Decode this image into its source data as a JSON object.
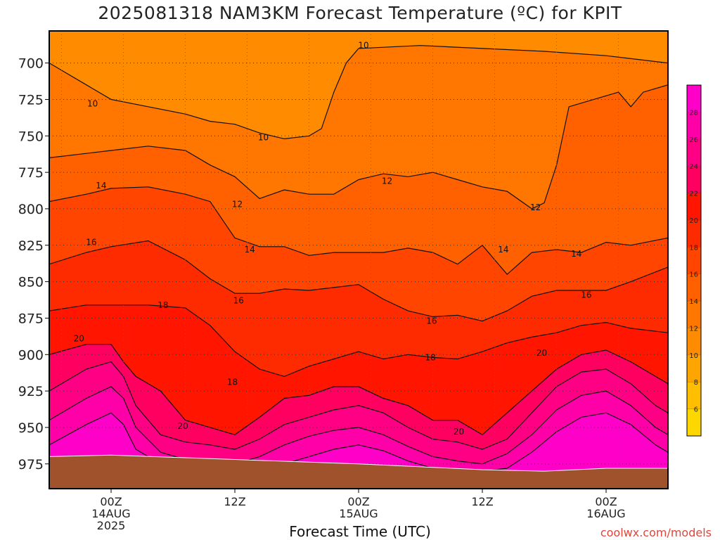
{
  "chart_data": {
    "type": "heatmap",
    "title": "2025081318 NAM3KM Forecast Temperature (ºC) for KPIT",
    "xlabel": "Forecast Time (UTC)",
    "ylabel": "",
    "credit": "coolwx.com/models",
    "y_axis": {
      "ticks": [
        700,
        725,
        750,
        775,
        800,
        825,
        850,
        875,
        900,
        925,
        950,
        975
      ],
      "reversed": true,
      "range": [
        678,
        992
      ]
    },
    "x_axis": {
      "range_hours": [
        -5,
        45
      ],
      "ticks": [
        {
          "hour": 0,
          "lines": [
            "00Z",
            "14AUG",
            "2025"
          ]
        },
        {
          "hour": 10,
          "lines": [
            "12Z"
          ]
        },
        {
          "hour": 20,
          "lines": [
            "00Z",
            "15AUG"
          ]
        },
        {
          "hour": 30,
          "lines": [
            "12Z"
          ]
        },
        {
          "hour": 40,
          "lines": [
            "00Z",
            "16AUG"
          ]
        }
      ]
    },
    "grid": true,
    "colorbar": {
      "ticks": [
        6,
        8,
        10,
        12,
        14,
        16,
        18,
        20,
        22,
        24,
        26,
        28
      ],
      "colors": [
        "#ffd700",
        "#ffbe00",
        "#ffa500",
        "#ff8c00",
        "#ff7700",
        "#ff6000",
        "#ff4500",
        "#ff2b00",
        "#ff1500",
        "#ff0060",
        "#ff0085",
        "#ff00a8",
        "#ff00c8"
      ]
    },
    "isotherms": [
      {
        "value": 10,
        "pressure_by_hour": [
          [
            -5,
            700
          ],
          [
            -2,
            715
          ],
          [
            0,
            725
          ],
          [
            3,
            730
          ],
          [
            6,
            735
          ],
          [
            8,
            740
          ],
          [
            10,
            742
          ],
          [
            12,
            748
          ],
          [
            14,
            752
          ],
          [
            16,
            750
          ],
          [
            17,
            745
          ],
          [
            18,
            720
          ],
          [
            19,
            700
          ],
          [
            20,
            690
          ],
          [
            25,
            688
          ],
          [
            30,
            690
          ],
          [
            35,
            692
          ],
          [
            40,
            695
          ],
          [
            45,
            700
          ]
        ]
      },
      {
        "value": 12,
        "pressure_by_hour": [
          [
            -5,
            765
          ],
          [
            -2,
            762
          ],
          [
            0,
            760
          ],
          [
            3,
            757
          ],
          [
            6,
            760
          ],
          [
            8,
            770
          ],
          [
            10,
            778
          ],
          [
            12,
            793
          ],
          [
            14,
            787
          ],
          [
            16,
            790
          ],
          [
            18,
            790
          ],
          [
            20,
            780
          ],
          [
            22,
            776
          ],
          [
            24,
            778
          ],
          [
            26,
            775
          ],
          [
            28,
            780
          ],
          [
            30,
            785
          ],
          [
            32,
            788
          ],
          [
            34,
            800
          ],
          [
            35,
            796
          ],
          [
            36,
            770
          ],
          [
            37,
            730
          ],
          [
            39,
            725
          ],
          [
            41,
            720
          ],
          [
            42,
            730
          ],
          [
            43,
            720
          ],
          [
            45,
            715
          ]
        ]
      },
      {
        "value": 14,
        "pressure_by_hour": [
          [
            -5,
            795
          ],
          [
            -2,
            790
          ],
          [
            0,
            786
          ],
          [
            3,
            785
          ],
          [
            6,
            790
          ],
          [
            8,
            795
          ],
          [
            10,
            820
          ],
          [
            12,
            826
          ],
          [
            14,
            826
          ],
          [
            16,
            832
          ],
          [
            18,
            830
          ],
          [
            20,
            830
          ],
          [
            22,
            830
          ],
          [
            24,
            827
          ],
          [
            26,
            830
          ],
          [
            28,
            838
          ],
          [
            30,
            825
          ],
          [
            32,
            845
          ],
          [
            34,
            830
          ],
          [
            36,
            828
          ],
          [
            38,
            830
          ],
          [
            40,
            823
          ],
          [
            42,
            825
          ],
          [
            45,
            820
          ]
        ]
      },
      {
        "value": 16,
        "pressure_by_hour": [
          [
            -5,
            838
          ],
          [
            -2,
            830
          ],
          [
            0,
            826
          ],
          [
            3,
            822
          ],
          [
            6,
            835
          ],
          [
            8,
            848
          ],
          [
            10,
            858
          ],
          [
            12,
            858
          ],
          [
            14,
            855
          ],
          [
            16,
            856
          ],
          [
            18,
            854
          ],
          [
            20,
            852
          ],
          [
            22,
            862
          ],
          [
            24,
            870
          ],
          [
            26,
            874
          ],
          [
            28,
            873
          ],
          [
            30,
            877
          ],
          [
            32,
            870
          ],
          [
            34,
            860
          ],
          [
            36,
            856
          ],
          [
            38,
            856
          ],
          [
            40,
            856
          ],
          [
            42,
            850
          ],
          [
            45,
            840
          ]
        ]
      },
      {
        "value": 18,
        "pressure_by_hour": [
          [
            -5,
            870
          ],
          [
            -2,
            866
          ],
          [
            0,
            866
          ],
          [
            3,
            866
          ],
          [
            6,
            868
          ],
          [
            8,
            880
          ],
          [
            10,
            898
          ],
          [
            12,
            910
          ],
          [
            14,
            915
          ],
          [
            16,
            908
          ],
          [
            18,
            903
          ],
          [
            20,
            898
          ],
          [
            22,
            903
          ],
          [
            24,
            900
          ],
          [
            26,
            902
          ],
          [
            28,
            903
          ],
          [
            30,
            898
          ],
          [
            32,
            892
          ],
          [
            34,
            888
          ],
          [
            36,
            885
          ],
          [
            38,
            880
          ],
          [
            40,
            878
          ],
          [
            42,
            882
          ],
          [
            45,
            885
          ]
        ]
      },
      {
        "value": 20,
        "pressure_by_hour": [
          [
            -5,
            900
          ],
          [
            -2,
            893
          ],
          [
            0,
            893
          ],
          [
            1,
            905
          ],
          [
            2,
            915
          ],
          [
            4,
            925
          ],
          [
            6,
            945
          ],
          [
            8,
            950
          ],
          [
            10,
            955
          ],
          [
            12,
            943
          ],
          [
            14,
            930
          ],
          [
            16,
            928
          ],
          [
            18,
            922
          ],
          [
            20,
            922
          ],
          [
            22,
            930
          ],
          [
            24,
            935
          ],
          [
            26,
            945
          ],
          [
            28,
            945
          ],
          [
            30,
            955
          ],
          [
            32,
            940
          ],
          [
            34,
            925
          ],
          [
            36,
            910
          ],
          [
            38,
            900
          ],
          [
            40,
            897
          ],
          [
            42,
            905
          ],
          [
            44,
            915
          ],
          [
            45,
            920
          ]
        ]
      },
      {
        "value": 22,
        "pressure_by_hour": [
          [
            -5,
            925
          ],
          [
            -2,
            910
          ],
          [
            0,
            905
          ],
          [
            1,
            915
          ],
          [
            2,
            935
          ],
          [
            4,
            955
          ],
          [
            6,
            960
          ],
          [
            8,
            962
          ],
          [
            10,
            965
          ],
          [
            12,
            958
          ],
          [
            14,
            948
          ],
          [
            16,
            943
          ],
          [
            18,
            938
          ],
          [
            20,
            935
          ],
          [
            22,
            940
          ],
          [
            24,
            950
          ],
          [
            26,
            958
          ],
          [
            28,
            960
          ],
          [
            30,
            965
          ],
          [
            32,
            958
          ],
          [
            34,
            940
          ],
          [
            36,
            922
          ],
          [
            38,
            912
          ],
          [
            40,
            910
          ],
          [
            42,
            920
          ],
          [
            44,
            935
          ],
          [
            45,
            940
          ]
        ]
      },
      {
        "value": 24,
        "pressure_by_hour": [
          [
            -5,
            945
          ],
          [
            -2,
            930
          ],
          [
            0,
            922
          ],
          [
            1,
            930
          ],
          [
            2,
            950
          ],
          [
            4,
            967
          ],
          [
            6,
            972
          ],
          [
            8,
            973
          ],
          [
            10,
            975
          ],
          [
            12,
            970
          ],
          [
            14,
            962
          ],
          [
            16,
            956
          ],
          [
            18,
            952
          ],
          [
            20,
            950
          ],
          [
            22,
            955
          ],
          [
            24,
            963
          ],
          [
            26,
            970
          ],
          [
            28,
            973
          ],
          [
            30,
            975
          ],
          [
            32,
            968
          ],
          [
            34,
            955
          ],
          [
            36,
            938
          ],
          [
            38,
            928
          ],
          [
            40,
            925
          ],
          [
            42,
            935
          ],
          [
            44,
            950
          ],
          [
            45,
            955
          ]
        ]
      },
      {
        "value": 26,
        "pressure_by_hour": [
          [
            -5,
            962
          ],
          [
            -2,
            948
          ],
          [
            0,
            940
          ],
          [
            1,
            948
          ],
          [
            2,
            965
          ],
          [
            4,
            975
          ],
          [
            8,
            978
          ],
          [
            12,
            978
          ],
          [
            14,
            975
          ],
          [
            16,
            970
          ],
          [
            18,
            965
          ],
          [
            20,
            962
          ],
          [
            22,
            966
          ],
          [
            24,
            973
          ],
          [
            26,
            978
          ],
          [
            30,
            980
          ],
          [
            32,
            978
          ],
          [
            34,
            967
          ],
          [
            36,
            953
          ],
          [
            38,
            943
          ],
          [
            40,
            940
          ],
          [
            42,
            948
          ],
          [
            44,
            962
          ],
          [
            45,
            967
          ]
        ]
      }
    ],
    "contour_labels": [
      {
        "text": "10",
        "hour": -1.5,
        "pressure": 728
      },
      {
        "text": "10",
        "hour": 12.3,
        "pressure": 751
      },
      {
        "text": "10",
        "hour": 20.4,
        "pressure": 688
      },
      {
        "text": "12",
        "hour": 10.2,
        "pressure": 797
      },
      {
        "text": "12",
        "hour": 22.3,
        "pressure": 781
      },
      {
        "text": "12",
        "hour": 34.3,
        "pressure": 799
      },
      {
        "text": "14",
        "hour": -0.8,
        "pressure": 784
      },
      {
        "text": "14",
        "hour": 11.2,
        "pressure": 828
      },
      {
        "text": "14",
        "hour": 31.7,
        "pressure": 828
      },
      {
        "text": "14",
        "hour": 37.6,
        "pressure": 831
      },
      {
        "text": "16",
        "hour": -1.6,
        "pressure": 823
      },
      {
        "text": "16",
        "hour": 10.3,
        "pressure": 863
      },
      {
        "text": "16",
        "hour": 25.9,
        "pressure": 877
      },
      {
        "text": "16",
        "hour": 38.4,
        "pressure": 859
      },
      {
        "text": "18",
        "hour": 4.2,
        "pressure": 866
      },
      {
        "text": "18",
        "hour": 9.8,
        "pressure": 919
      },
      {
        "text": "18",
        "hour": 25.8,
        "pressure": 902
      },
      {
        "text": "20",
        "hour": -2.6,
        "pressure": 889
      },
      {
        "text": "20",
        "hour": 5.8,
        "pressure": 949
      },
      {
        "text": "20",
        "hour": 28.1,
        "pressure": 953
      },
      {
        "text": "20",
        "hour": 34.8,
        "pressure": 899
      }
    ],
    "ground_pressure_by_hour": [
      [
        -5,
        970
      ],
      [
        0,
        969
      ],
      [
        10,
        972
      ],
      [
        20,
        975
      ],
      [
        30,
        979
      ],
      [
        35,
        980
      ],
      [
        40,
        978
      ],
      [
        45,
        978
      ]
    ]
  }
}
